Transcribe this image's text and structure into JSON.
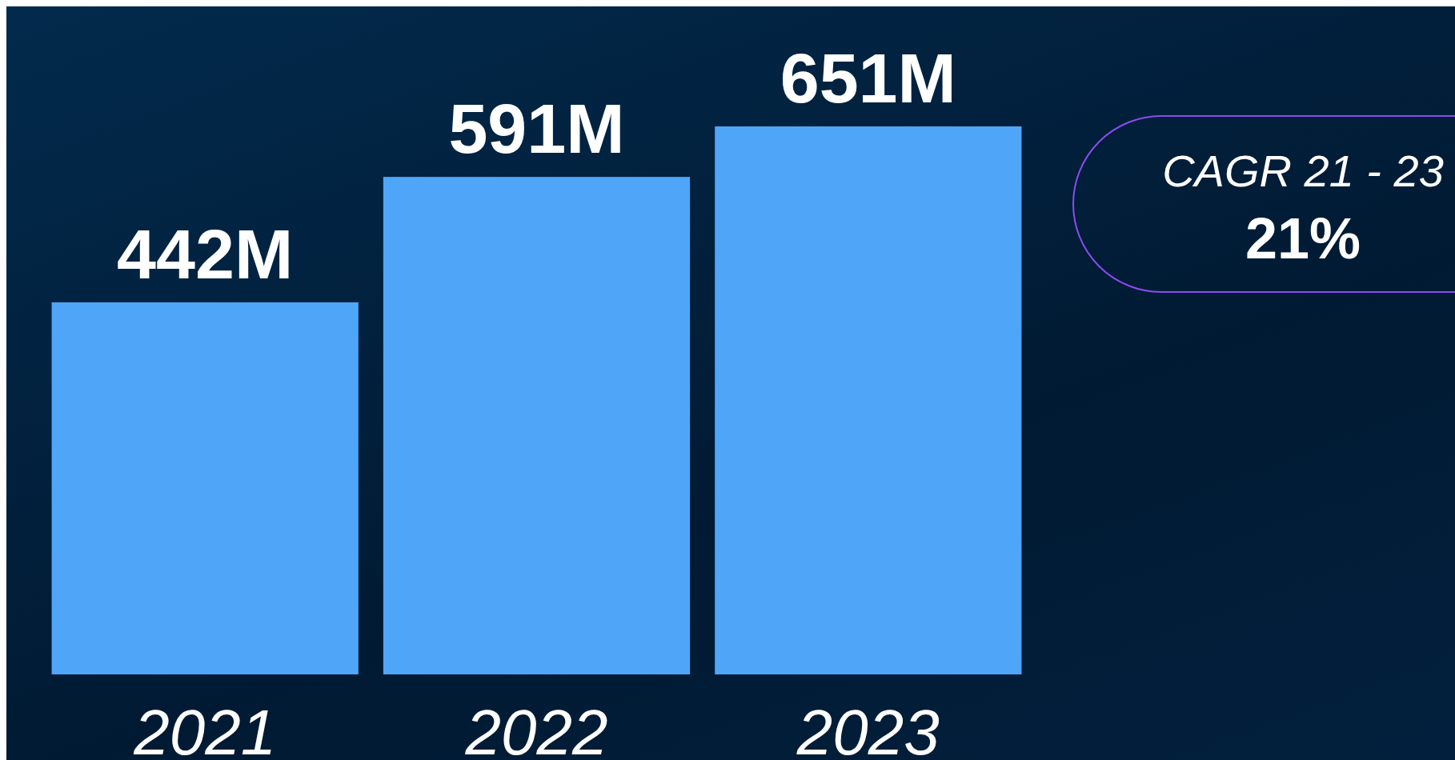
{
  "chart_data": {
    "type": "bar",
    "categories": [
      "2021",
      "2022",
      "2023"
    ],
    "values": [
      442,
      591,
      651
    ],
    "value_labels": [
      "442M",
      "591M",
      "651M"
    ],
    "color": "#4fa6f8",
    "annotations": [
      "CAGR 21 - 23",
      "21%"
    ]
  }
}
